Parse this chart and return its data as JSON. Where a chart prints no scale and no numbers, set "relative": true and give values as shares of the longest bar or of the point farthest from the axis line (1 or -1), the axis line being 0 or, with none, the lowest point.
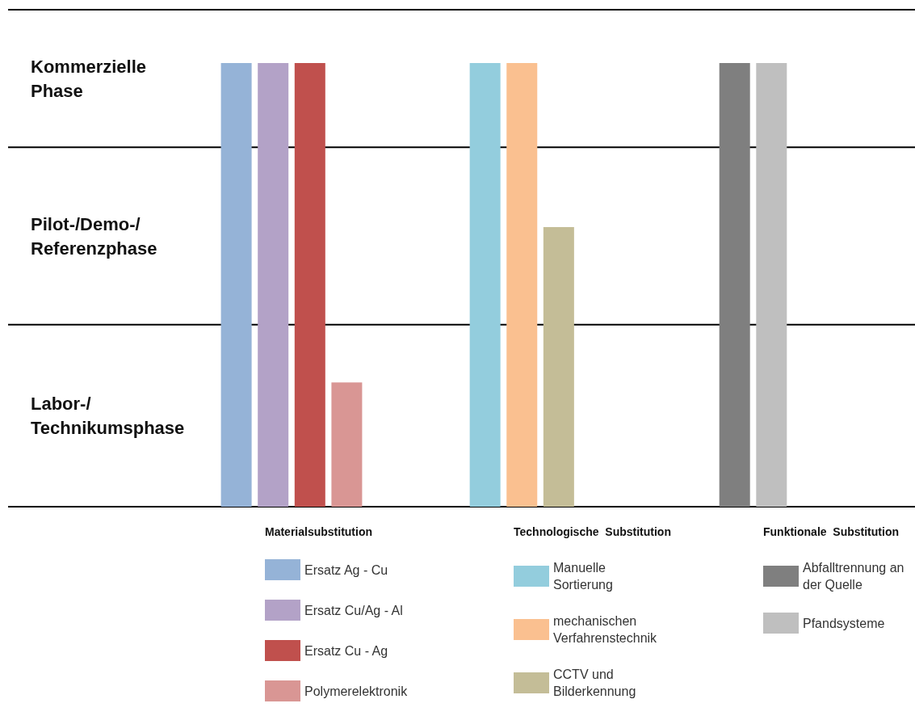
{
  "chart_data": [
    {
      "type": "bar",
      "relative": true,
      "title": "Materialsubstitution",
      "categories": [
        null
      ],
      "series": [
        {
          "name": "Ersatz Ag - Cu",
          "color": "#95b3d7",
          "values": [
            1
          ]
        },
        {
          "name": "Ersatz Cu/Ag - Al",
          "color": "#b3a2c7",
          "values": [
            1
          ]
        },
        {
          "name": "Ersatz Cu - Ag",
          "color": "#c0504d",
          "values": [
            1
          ]
        },
        {
          "name": "Polymerelektronik",
          "color": "#d99694",
          "values": [
            0.28
          ]
        }
      ],
      "ref_lines": [
        {
          "axis": "y",
          "value": 1.12,
          "color": "#000000"
        },
        {
          "axis": "y",
          "value": 0.81,
          "color": "#000000"
        },
        {
          "axis": "y",
          "value": 0.41,
          "color": "#000000"
        },
        {
          "axis": "y",
          "value": 0,
          "color": "#000000"
        }
      ],
      "annotations": [
        "Kommerzielle Phase",
        "Pilot-/Demo-/Referenzphase",
        "Labor-/Technikumsphase"
      ],
      "legend": "bottom"
    },
    {
      "type": "bar",
      "relative": true,
      "title": "Technologische  Substitution",
      "categories": [
        null
      ],
      "series": [
        {
          "name": "Manuelle Sortierung",
          "color": "#93cddd",
          "values": [
            1
          ]
        },
        {
          "name": "mechanischen Verfahrenstechnik",
          "color": "#fac090",
          "values": [
            1
          ]
        },
        {
          "name": "CCTV und Bilderkennung",
          "color": "#c4bd97",
          "values": [
            0.63
          ]
        }
      ],
      "legend": "bottom"
    },
    {
      "type": "bar",
      "relative": true,
      "title": "Funktionale  Substitution",
      "categories": [
        null
      ],
      "series": [
        {
          "name": "Abfalltrennung an der Quelle",
          "color": "#7f7f7f",
          "values": [
            1
          ]
        },
        {
          "name": "Pfandsysteme",
          "color": "#bfbfbf",
          "values": [
            1
          ]
        }
      ],
      "legend": "bottom"
    }
  ]
}
